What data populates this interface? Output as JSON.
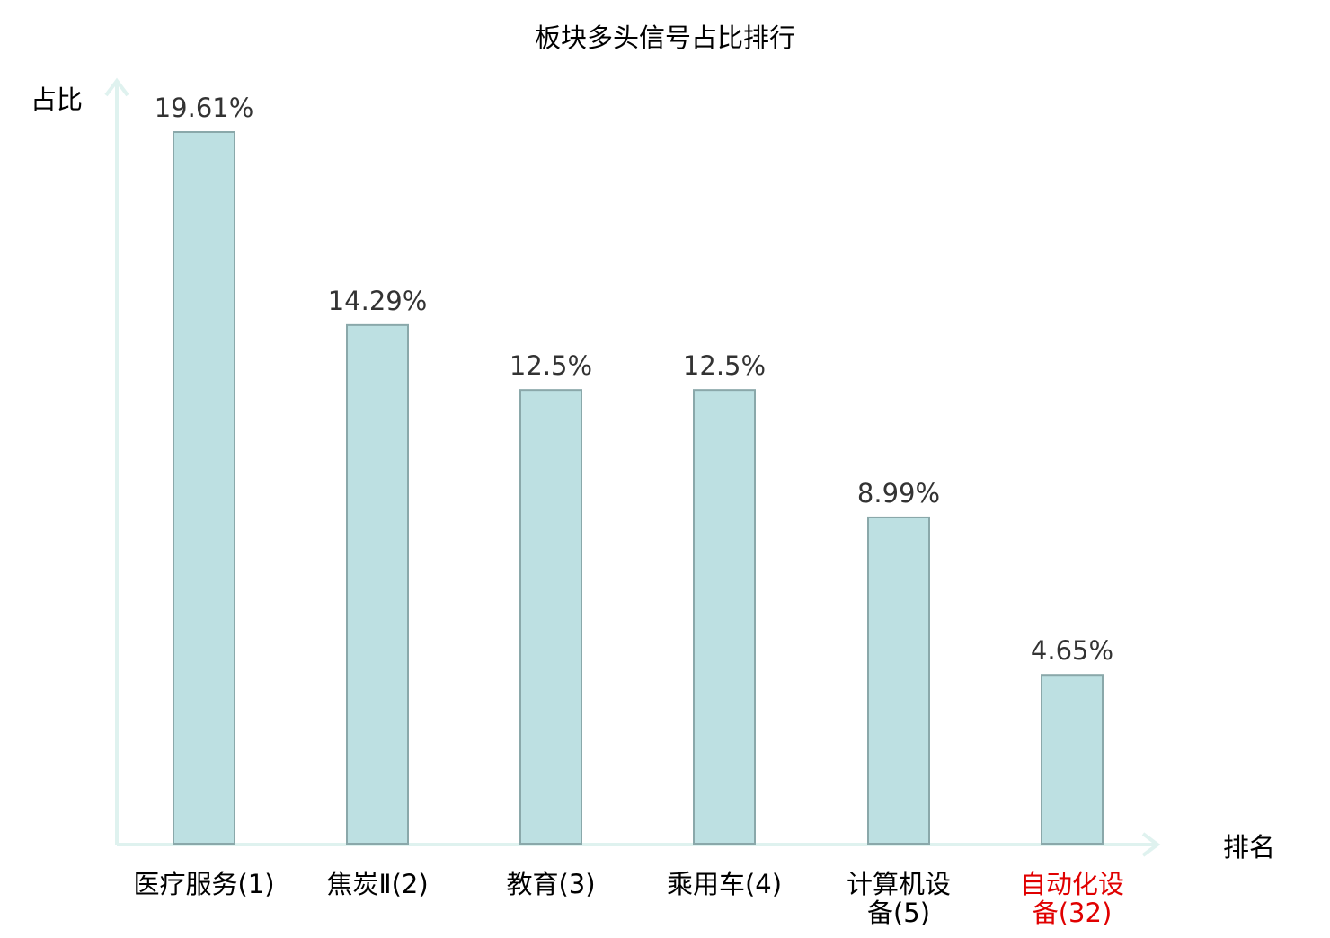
{
  "chart_data": {
    "type": "bar",
    "title": "板块多头信号占比排行",
    "ylabel": "占比",
    "xlabel": "排名",
    "categories": [
      [
        "医疗服务(1)"
      ],
      [
        "焦炭Ⅱ(2)"
      ],
      [
        "教育(3)"
      ],
      [
        "乘用车(4)"
      ],
      [
        "计算机设",
        "备(5)"
      ],
      [
        "自动化设",
        "备(32)"
      ]
    ],
    "values": [
      19.61,
      14.29,
      12.5,
      12.5,
      8.99,
      4.65
    ],
    "value_labels": [
      "19.61%",
      "14.29%",
      "12.5%",
      "12.5%",
      "8.99%",
      "4.65%"
    ],
    "highlighted_category_index": 5,
    "ylim": [
      0,
      19.61
    ],
    "grid": false,
    "legend": "none",
    "colors": {
      "bar_fill": "#bde0e2",
      "bar_stroke": "#8aa8aa",
      "axis": "#dff2ef",
      "text": "#333333",
      "title": "#000000",
      "highlight": "#e00000"
    }
  }
}
